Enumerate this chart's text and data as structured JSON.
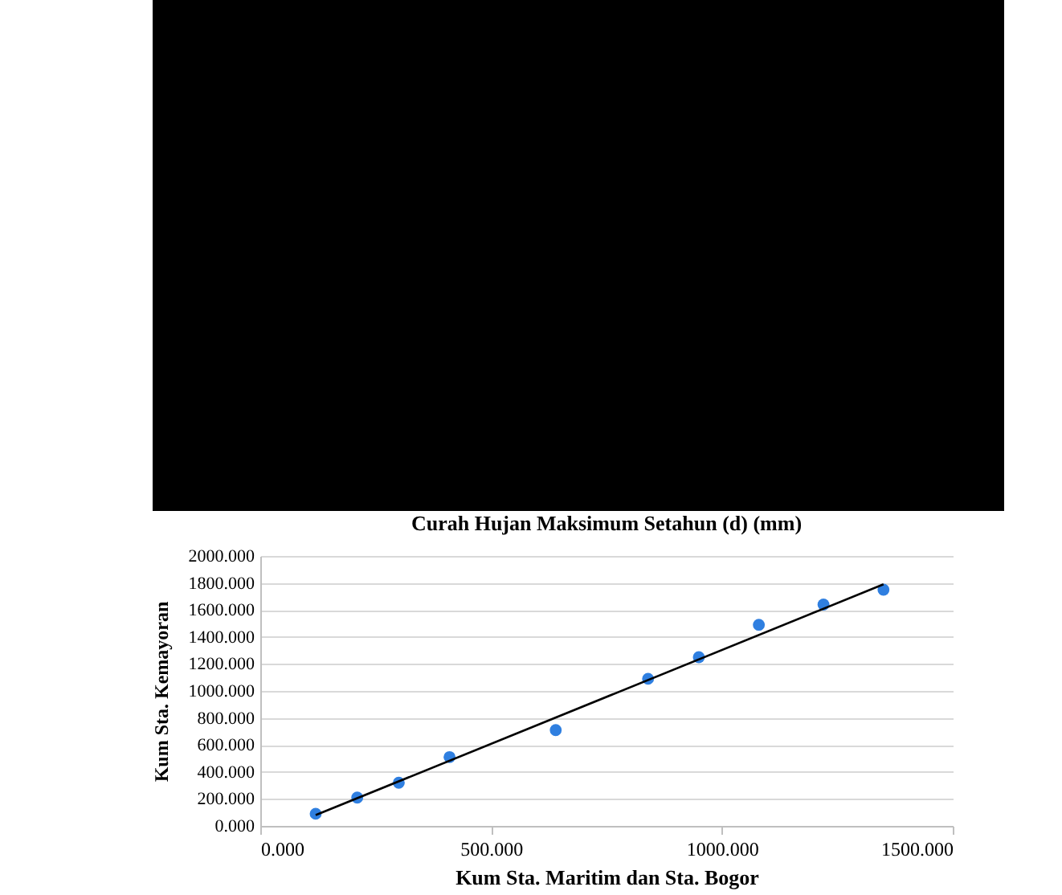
{
  "chart_data": {
    "type": "scatter",
    "title": "Curah Hujan Maksimum Setahun (d) (mm)",
    "xlabel": "Kum Sta. Maritim dan Sta. Bogor",
    "ylabel": "Kum Sta. Kemayoran",
    "x": [
      120,
      210,
      300,
      410,
      640,
      840,
      950,
      1080,
      1220,
      1350
    ],
    "series": [
      {
        "color": "#2f7fe0",
        "values": [
          90,
          210,
          320,
          510,
          710,
          1090,
          1250,
          1490,
          1640,
          1750
        ]
      },
      {
        "type": "line",
        "color": "#000000",
        "marker": "none",
        "x": [
          120,
          1350
        ],
        "values": [
          80,
          1790
        ]
      }
    ],
    "xlim": [
      0,
      1500
    ],
    "ylim": [
      0,
      2000
    ],
    "xticks": [
      {
        "value": 0,
        "label": "0.000"
      },
      {
        "value": 500,
        "label": "500.000"
      },
      {
        "value": 1000,
        "label": "1000.000"
      },
      {
        "value": 1500,
        "label": "1500.000"
      }
    ],
    "yticks": [
      {
        "value": 0,
        "label": "0.000"
      },
      {
        "value": 200,
        "label": "200.000"
      },
      {
        "value": 400,
        "label": "400.000"
      },
      {
        "value": 600,
        "label": "600.000"
      },
      {
        "value": 800,
        "label": "800.000"
      },
      {
        "value": 1000,
        "label": "1000.000"
      },
      {
        "value": 1200,
        "label": "1200.000"
      },
      {
        "value": 1400,
        "label": "1400.000"
      },
      {
        "value": 1600,
        "label": "1600.000"
      },
      {
        "value": 1800,
        "label": "1800.000"
      },
      {
        "value": 2000,
        "label": "2000.000"
      }
    ],
    "grid": "y",
    "marker": "circle"
  }
}
